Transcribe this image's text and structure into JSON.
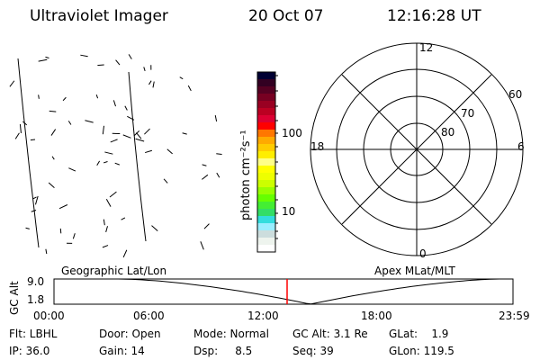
{
  "header": {
    "instrument": "Ultraviolet Imager",
    "date": "20 Oct 07",
    "time": "12:16:28 UT"
  },
  "colorbar": {
    "label": "photon cm⁻²s⁻¹",
    "ticks": [
      "100",
      "10"
    ],
    "scale": "log",
    "colors": [
      "#000033",
      "#330022",
      "#550022",
      "#770022",
      "#990022",
      "#bb0022",
      "#dd0033",
      "#ff0000",
      "#ff7700",
      "#ffaa00",
      "#ffcc00",
      "#ffee00",
      "#ffff88",
      "#ffff00",
      "#eeff00",
      "#ccff00",
      "#99ff00",
      "#66ff00",
      "#44ee33",
      "#33dd66",
      "#33dddd",
      "#99eeff",
      "#ccdddd",
      "#eef4ee",
      "#ffffff"
    ]
  },
  "polar": {
    "mlt_labels": {
      "top": "12",
      "left": "18",
      "right": "6",
      "bottom": "0"
    },
    "lat_labels": [
      "80",
      "70",
      "60"
    ]
  },
  "timeline": {
    "left_label": "Geographic Lat/Lon",
    "right_label": "Apex MLat/MLT",
    "ylabel": "GC Alt",
    "yticks": [
      "9.0",
      "1.8"
    ],
    "xticks": [
      "00:00",
      "06:00",
      "12:00",
      "18:00",
      "23:59"
    ],
    "marker_color": "#ff0000"
  },
  "status": {
    "row1": [
      "Flt: LBHL",
      "Door: Open",
      "Mode: Normal",
      "GC Alt: 3.1 Re",
      "GLat:    1.9"
    ],
    "row2": [
      "IP: 36.0",
      "Gain: 14",
      "Dsp:     8.5",
      "Seq: 39",
      "GLon: 119.5"
    ]
  }
}
